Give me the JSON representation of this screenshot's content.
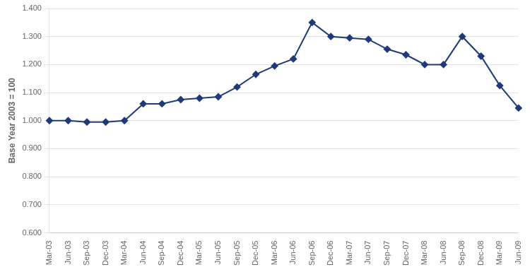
{
  "chart_data": {
    "type": "line",
    "ylabel": "Base Year 2003 = 100",
    "categories": [
      "Mar-03",
      "Jun-03",
      "Sep-03",
      "Dec-03",
      "Mar-04",
      "Jun-04",
      "Sep-04",
      "Dec-04",
      "Mar-05",
      "Jun-05",
      "Sep-05",
      "Dec-05",
      "Mar-06",
      "Jun-06",
      "Sep-06",
      "Dec-06",
      "Mar-07",
      "Jun-07",
      "Sep-07",
      "Dec-07",
      "Mar-08",
      "Jun-08",
      "Sep-08",
      "Dec-08",
      "Mar-09",
      "Jun-09"
    ],
    "values": [
      1.0,
      1.0,
      0.995,
      0.995,
      1.0,
      1.06,
      1.06,
      1.075,
      1.08,
      1.085,
      1.12,
      1.165,
      1.195,
      1.22,
      1.35,
      1.3,
      1.295,
      1.29,
      1.255,
      1.235,
      1.2,
      1.2,
      1.3,
      1.23,
      1.125,
      1.045
    ],
    "color": "#1F3A7A",
    "marker": "diamond",
    "ylim": [
      0.6,
      1.4
    ],
    "yticks": [
      {
        "value": 0.6,
        "label": "0.600"
      },
      {
        "value": 0.7,
        "label": "0.700"
      },
      {
        "value": 0.8,
        "label": "0.800"
      },
      {
        "value": 0.9,
        "label": "0.900"
      },
      {
        "value": 1.0,
        "label": "1.000"
      },
      {
        "value": 1.1,
        "label": "1.100"
      },
      {
        "value": 1.2,
        "label": "1.200"
      },
      {
        "value": 1.3,
        "label": "1.300"
      },
      {
        "value": 1.4,
        "label": "1.400"
      }
    ],
    "grid": "y"
  }
}
